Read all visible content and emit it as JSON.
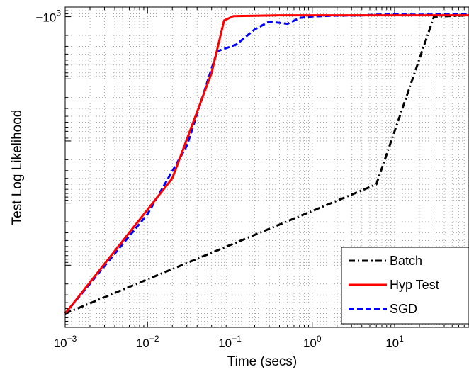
{
  "chart_data": {
    "type": "line",
    "title": "",
    "xlabel": "Time (secs)",
    "ylabel": "Test Log Likelihood",
    "x_scale": "log",
    "y_scale": "log-negative",
    "xlim": [
      0.001,
      80
    ],
    "ylim": [
      -100000000,
      -700
    ],
    "grid": true,
    "legend_position": "bottom-right",
    "x_ticks": [
      {
        "value": 0.001,
        "base": "10",
        "exp": "−3"
      },
      {
        "value": 0.01,
        "base": "10",
        "exp": "−2"
      },
      {
        "value": 0.1,
        "base": "10",
        "exp": "−1"
      },
      {
        "value": 1,
        "base": "10",
        "exp": "0"
      },
      {
        "value": 10,
        "base": "10",
        "exp": "1"
      }
    ],
    "y_ticks": [
      {
        "value": -1000,
        "base": "−10",
        "exp": "3"
      }
    ],
    "series": [
      {
        "name": "Batch",
        "color": "#000000",
        "style": "dashdot",
        "points": [
          [
            0.001,
            -60000000
          ],
          [
            6,
            -500000
          ],
          [
            30,
            -1000
          ],
          [
            80,
            -950
          ]
        ]
      },
      {
        "name": "Hyp Test",
        "color": "#ff0000",
        "style": "solid",
        "points": [
          [
            0.001,
            -60000000
          ],
          [
            0.02,
            -400000
          ],
          [
            0.06,
            -8000
          ],
          [
            0.085,
            -1150
          ],
          [
            0.11,
            -980
          ],
          [
            0.4,
            -950
          ],
          [
            1.5,
            -950
          ],
          [
            80,
            -950
          ]
        ]
      },
      {
        "name": "SGD",
        "color": "#0000ff",
        "style": "dashed",
        "points": [
          [
            0.001,
            -60000000
          ],
          [
            0.01,
            -1500000
          ],
          [
            0.03,
            -120000
          ],
          [
            0.07,
            -3600
          ],
          [
            0.12,
            -2800
          ],
          [
            0.2,
            -1600
          ],
          [
            0.3,
            -1200
          ],
          [
            0.5,
            -1300
          ],
          [
            0.7,
            -1050
          ],
          [
            1,
            -990
          ],
          [
            2,
            -960
          ],
          [
            4,
            -955
          ],
          [
            6,
            -930
          ],
          [
            10,
            -920
          ],
          [
            20,
            -930
          ],
          [
            40,
            -920
          ],
          [
            80,
            -910
          ]
        ]
      }
    ]
  }
}
